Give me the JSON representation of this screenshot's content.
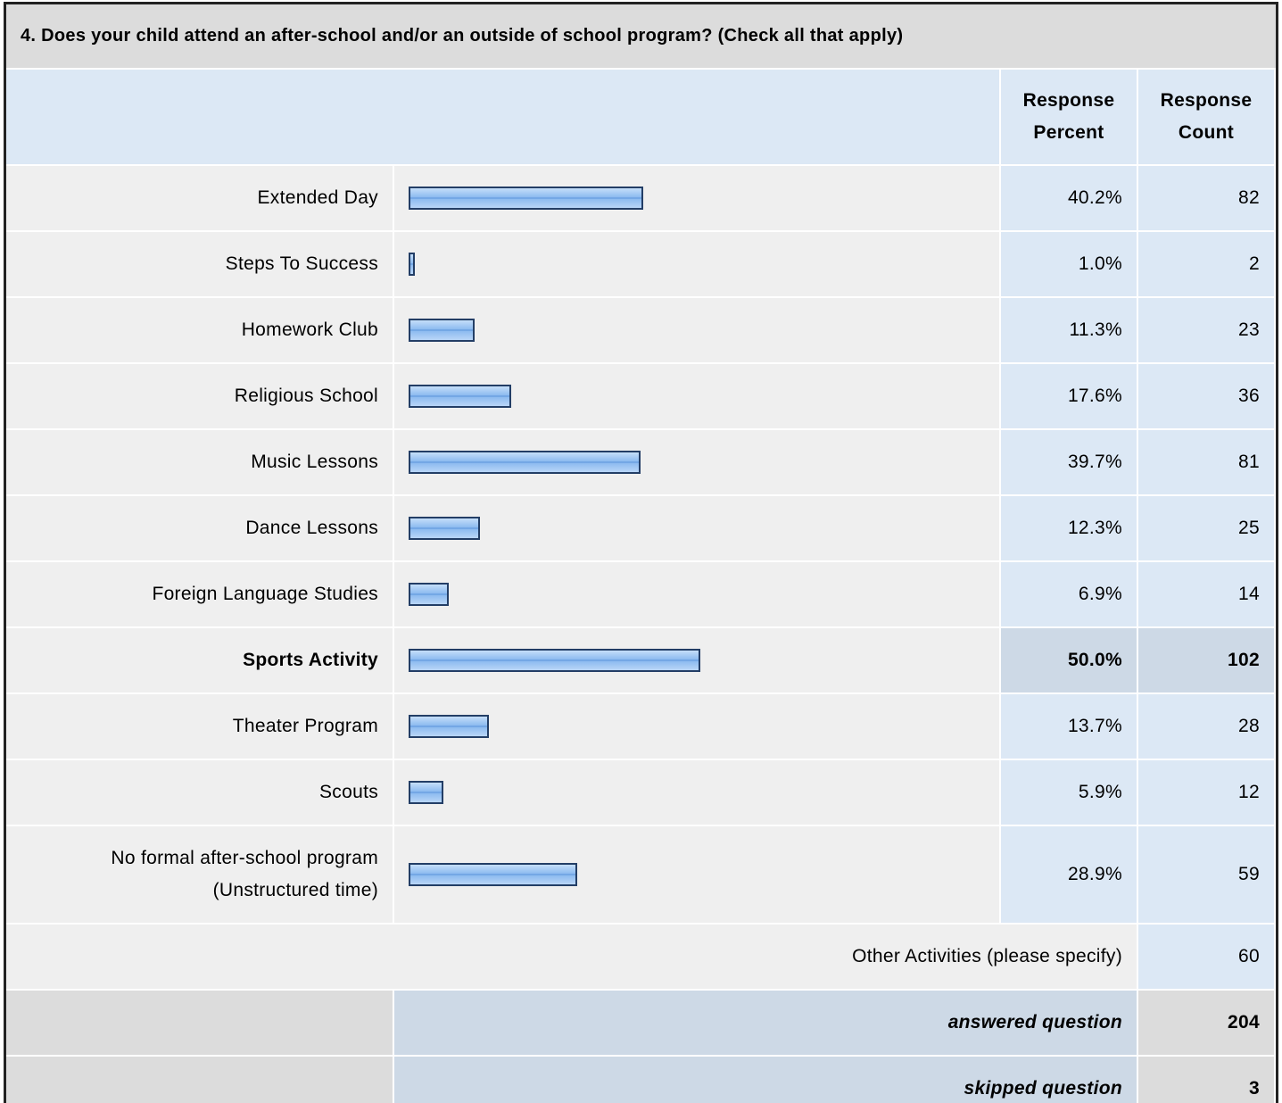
{
  "title": "4. Does your child attend an after-school and/or an outside of school program? (Check all that apply)",
  "headers": [
    "Response Percent",
    "Response Count"
  ],
  "highlight_row": 7,
  "rows": [
    {
      "label": "Extended Day",
      "percent": 40.2,
      "percent_label": "40.2%",
      "count": 82
    },
    {
      "label": "Steps To Success",
      "percent": 1.0,
      "percent_label": "1.0%",
      "count": 2
    },
    {
      "label": "Homework Club",
      "percent": 11.3,
      "percent_label": "11.3%",
      "count": 23
    },
    {
      "label": "Religious School",
      "percent": 17.6,
      "percent_label": "17.6%",
      "count": 36
    },
    {
      "label": "Music Lessons",
      "percent": 39.7,
      "percent_label": "39.7%",
      "count": 81
    },
    {
      "label": "Dance Lessons",
      "percent": 12.3,
      "percent_label": "12.3%",
      "count": 25
    },
    {
      "label": "Foreign Language Studies",
      "percent": 6.9,
      "percent_label": "6.9%",
      "count": 14
    },
    {
      "label": "Sports Activity",
      "percent": 50.0,
      "percent_label": "50.0%",
      "count": 102
    },
    {
      "label": "Theater Program",
      "percent": 13.7,
      "percent_label": "13.7%",
      "count": 28
    },
    {
      "label": "Scouts",
      "percent": 5.9,
      "percent_label": "5.9%",
      "count": 12
    },
    {
      "label": "No formal after-school program (Unstructured time)",
      "percent": 28.9,
      "percent_label": "28.9%",
      "count": 59
    }
  ],
  "other": {
    "label": "Other Activities (please specify)",
    "count": 60
  },
  "answered": {
    "label": "answered question",
    "count": 204
  },
  "skipped": {
    "label": "skipped question",
    "count": 3
  }
}
